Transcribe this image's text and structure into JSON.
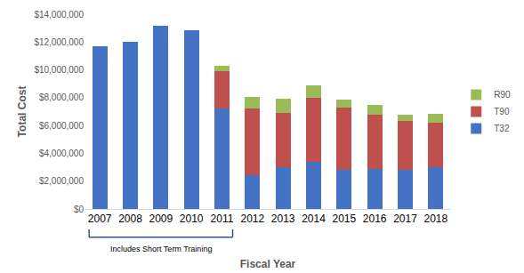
{
  "chart_data": {
    "type": "bar",
    "stacked": true,
    "x_label": "Fiscal Year",
    "y_label": "Total Cost",
    "categories": [
      "2007",
      "2008",
      "2009",
      "2010",
      "2011",
      "2012",
      "2013",
      "2014",
      "2015",
      "2016",
      "2017",
      "2018"
    ],
    "series": [
      {
        "name": "T32",
        "color": "#4472c4",
        "values": [
          11700000,
          12050000,
          13150000,
          12850000,
          7250000,
          2450000,
          3000000,
          3400000,
          2800000,
          2900000,
          2800000,
          3000000
        ]
      },
      {
        "name": "T90",
        "color": "#c0504d",
        "values": [
          null,
          null,
          null,
          null,
          2650000,
          4800000,
          3900000,
          4600000,
          4500000,
          3900000,
          3550000,
          3200000
        ]
      },
      {
        "name": "R90",
        "color": "#9bbb59",
        "values": [
          null,
          null,
          null,
          null,
          400000,
          800000,
          1000000,
          900000,
          550000,
          700000,
          450000,
          650000
        ]
      }
    ],
    "ylim": [
      0,
      14000000
    ],
    "yticks": [
      {
        "value": 0,
        "label": "$0"
      },
      {
        "value": 2000000,
        "label": "$2,000,000"
      },
      {
        "value": 4000000,
        "label": "$4,000,000"
      },
      {
        "value": 6000000,
        "label": "$6,000,000"
      },
      {
        "value": 8000000,
        "label": "$8,000,000"
      },
      {
        "value": 10000000,
        "label": "$10,000,000"
      },
      {
        "value": 12000000,
        "label": "$12,000,000"
      },
      {
        "value": 14000000,
        "label": "$14,000,000"
      }
    ],
    "grid": false,
    "legend": "right",
    "annotations": [
      {
        "text": "Includes Short Term Training",
        "from": "2007",
        "to": "2011"
      }
    ]
  }
}
